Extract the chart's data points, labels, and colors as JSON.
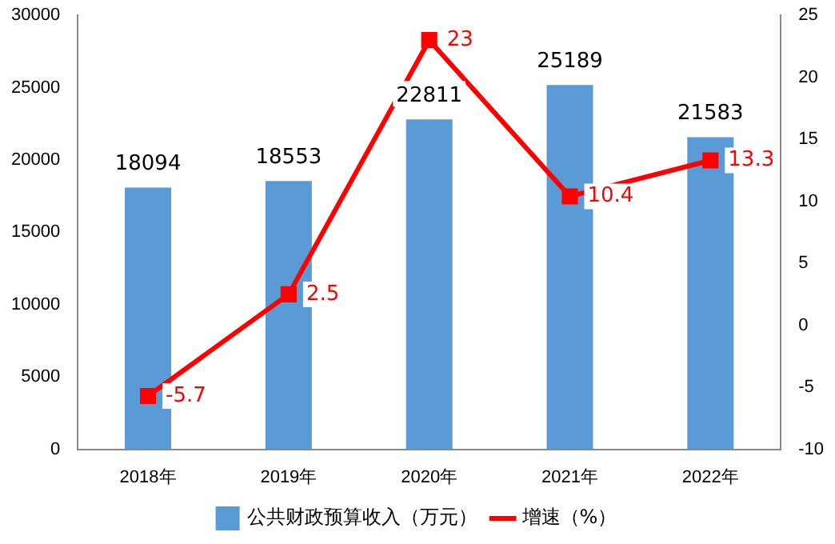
{
  "chart_data": {
    "type": "bar",
    "categories": [
      "2018年",
      "2019年",
      "2020年",
      "2021年",
      "2022年"
    ],
    "series": [
      {
        "name": "公共财政预算收入（万元）",
        "color": "#5b9bd5",
        "values": [
          18094,
          18553,
          22811,
          25189,
          21583
        ]
      },
      {
        "name": "增速（%）",
        "type": "line",
        "axis": "y2",
        "color": "#ff0000",
        "marker": "square",
        "values": [
          -5.7,
          2.5,
          23,
          10.4,
          13.3
        ]
      }
    ],
    "ylim": [
      0,
      30000
    ],
    "yticks": [
      0,
      5000,
      10000,
      15000,
      20000,
      25000,
      30000
    ],
    "y2lim": [
      -10,
      25
    ],
    "y2ticks": [
      -10,
      -5,
      0,
      5,
      10,
      15,
      20,
      25
    ],
    "data_labels": true,
    "legend": "bottom",
    "grid": false
  }
}
